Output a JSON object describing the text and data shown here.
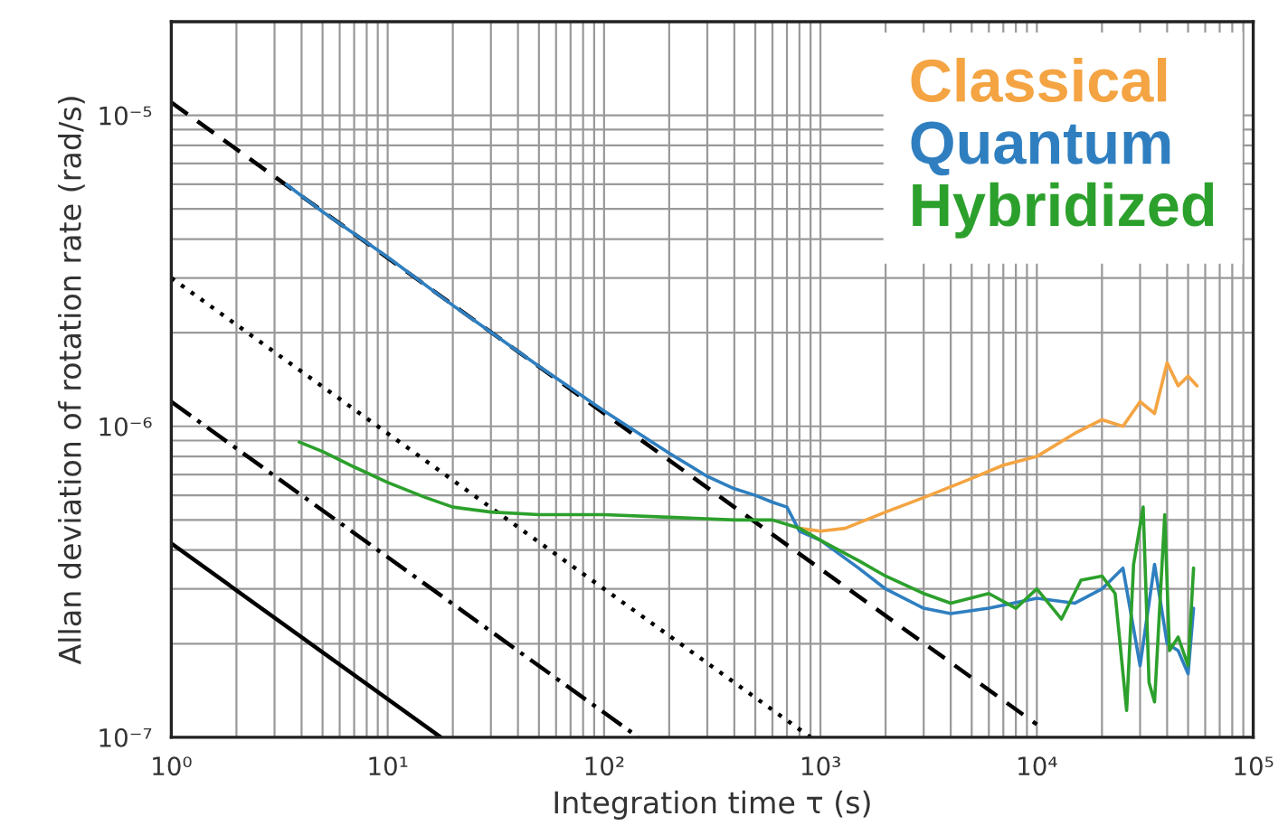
{
  "chart_data": {
    "type": "line",
    "xlabel": "Integration time τ (s)",
    "ylabel": "Allan deviation of rotation rate (rad/s)",
    "log": "xy",
    "grid": true,
    "legend": "top right",
    "xlim": [
      1,
      100000
    ],
    "ylim": [
      1e-07,
      2e-05
    ],
    "xticks": [
      {
        "value": 1,
        "label": "10⁰"
      },
      {
        "value": 10,
        "label": "10¹"
      },
      {
        "value": 100,
        "label": "10²"
      },
      {
        "value": 1000,
        "label": "10³"
      },
      {
        "value": 10000,
        "label": "10⁴"
      },
      {
        "value": 100000,
        "label": "10⁵"
      }
    ],
    "yticks": [
      {
        "value": 1e-07,
        "label": "10⁻⁷"
      },
      {
        "value": 1e-06,
        "label": "10⁻⁶"
      },
      {
        "value": 1e-05,
        "label": "10⁻⁵"
      }
    ],
    "series": [
      {
        "x": [
          1,
          10000
        ],
        "values": [
          1.1e-05,
          1.1e-07
        ],
        "color": "#000000",
        "line_style": "dashed"
      },
      {
        "x": [
          1,
          900
        ],
        "values": [
          3e-06,
          1e-07
        ],
        "color": "#000000",
        "line_style": "dotted"
      },
      {
        "x": [
          1,
          144
        ],
        "values": [
          1.2e-06,
          1e-07
        ],
        "color": "#000000",
        "line_style": "dashdot"
      },
      {
        "x": [
          1,
          17.6
        ],
        "values": [
          4.2e-07,
          1e-07
        ],
        "color": "#000000",
        "line_style": "solid"
      },
      {
        "name": "Classical",
        "color": "#f4a442",
        "x": [
          800,
          1000,
          1300,
          2000,
          3000,
          5000,
          7000,
          10000,
          15000,
          20000,
          25000,
          30000,
          35000,
          40000,
          45000,
          50000,
          55000
        ],
        "values": [
          4.7e-07,
          4.6e-07,
          4.7e-07,
          5.3e-07,
          5.9e-07,
          6.8e-07,
          7.5e-07,
          8e-07,
          9.5e-07,
          1.05e-06,
          1e-06,
          1.2e-06,
          1.1e-06,
          1.6e-06,
          1.35e-06,
          1.45e-06,
          1.35e-06
        ]
      },
      {
        "name": "Quantum",
        "color": "#2f7fc0",
        "x": [
          3.4,
          5,
          10,
          20,
          50,
          100,
          200,
          300,
          400,
          500,
          600,
          700,
          800,
          1000,
          1500,
          2000,
          3000,
          4000,
          6000,
          10000,
          15000,
          20000,
          25000,
          30000,
          35000,
          40000,
          45000,
          50000,
          53000
        ],
        "values": [
          6e-06,
          4.9e-06,
          3.5e-06,
          2.45e-06,
          1.56e-06,
          1.12e-06,
          8.2e-07,
          6.9e-07,
          6.3e-07,
          6e-07,
          5.7e-07,
          5.5e-07,
          4.6e-07,
          4.3e-07,
          3.5e-07,
          3e-07,
          2.6e-07,
          2.5e-07,
          2.6e-07,
          2.8e-07,
          2.7e-07,
          3e-07,
          3.5e-07,
          1.7e-07,
          3.6e-07,
          2e-07,
          1.9e-07,
          1.6e-07,
          2.6e-07
        ]
      },
      {
        "name": "Hybridized",
        "color": "#2ca02c",
        "x": [
          3.9,
          5,
          7,
          10,
          15,
          20,
          30,
          50,
          100,
          200,
          400,
          600,
          800,
          1000,
          1500,
          2000,
          3000,
          4000,
          6000,
          8000,
          10000,
          13000,
          16000,
          20000,
          23000,
          26000,
          28000,
          31000,
          33000,
          35000,
          39000,
          41000,
          45000,
          50000,
          53000
        ],
        "values": [
          8.9e-07,
          8.3e-07,
          7.4e-07,
          6.6e-07,
          5.9e-07,
          5.5e-07,
          5.3e-07,
          5.2e-07,
          5.2e-07,
          5.1e-07,
          5e-07,
          5e-07,
          4.7e-07,
          4.3e-07,
          3.7e-07,
          3.3e-07,
          2.9e-07,
          2.7e-07,
          2.9e-07,
          2.6e-07,
          3e-07,
          2.4e-07,
          3.2e-07,
          3.3e-07,
          2.9e-07,
          1.22e-07,
          3.6e-07,
          5.5e-07,
          1.5e-07,
          1.3e-07,
          5.2e-07,
          1.9e-07,
          2.1e-07,
          1.7e-07,
          3.5e-07
        ]
      }
    ]
  }
}
